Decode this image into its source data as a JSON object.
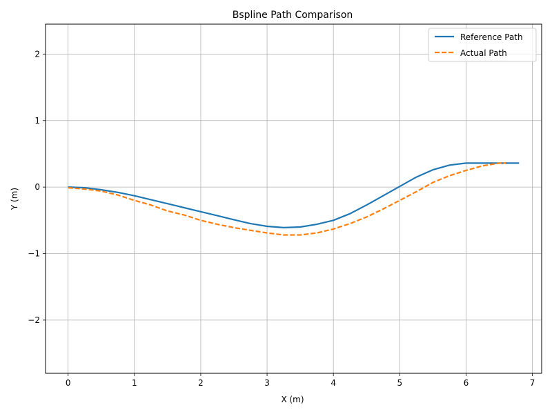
{
  "chart_data": {
    "type": "line",
    "title": "Bspline Path Comparison",
    "xlabel": "X (m)",
    "ylabel": "Y (m)",
    "xlim": [
      -0.34,
      7.14
    ],
    "ylim": [
      -2.8,
      2.45
    ],
    "xticks": [
      0,
      1,
      2,
      3,
      4,
      5,
      6,
      7
    ],
    "yticks": [
      -2,
      -1,
      0,
      1,
      2
    ],
    "xtick_labels": [
      "0",
      "1",
      "2",
      "3",
      "4",
      "5",
      "6",
      "7"
    ],
    "ytick_labels": [
      "−2",
      "−1",
      "0",
      "1",
      "2"
    ],
    "grid": true,
    "legend_position": "top-right",
    "series": [
      {
        "name": "Reference Path",
        "color": "#1f77b4",
        "style": "solid",
        "x": [
          0,
          0.25,
          0.5,
          0.75,
          1.0,
          1.25,
          1.5,
          1.75,
          2.0,
          2.25,
          2.5,
          2.75,
          3.0,
          3.25,
          3.5,
          3.75,
          4.0,
          4.25,
          4.5,
          4.75,
          5.0,
          5.25,
          5.5,
          5.75,
          6.0,
          6.25,
          6.5,
          6.8
        ],
        "y": [
          0,
          -0.01,
          -0.04,
          -0.08,
          -0.13,
          -0.19,
          -0.25,
          -0.31,
          -0.37,
          -0.43,
          -0.49,
          -0.55,
          -0.59,
          -0.61,
          -0.6,
          -0.56,
          -0.5,
          -0.4,
          -0.27,
          -0.13,
          0.01,
          0.15,
          0.26,
          0.33,
          0.36,
          0.36,
          0.36,
          0.36
        ]
      },
      {
        "name": "Actual Path",
        "color": "#ff7f0e",
        "style": "dashed",
        "x": [
          0,
          0.25,
          0.5,
          0.75,
          1.0,
          1.25,
          1.5,
          1.75,
          2.0,
          2.25,
          2.5,
          2.75,
          3.0,
          3.25,
          3.5,
          3.75,
          4.0,
          4.25,
          4.5,
          4.75,
          5.0,
          5.25,
          5.5,
          5.75,
          6.0,
          6.25,
          6.5,
          6.6
        ],
        "y": [
          -0.01,
          -0.03,
          -0.06,
          -0.12,
          -0.2,
          -0.27,
          -0.36,
          -0.42,
          -0.5,
          -0.56,
          -0.61,
          -0.65,
          -0.69,
          -0.72,
          -0.72,
          -0.69,
          -0.63,
          -0.55,
          -0.45,
          -0.33,
          -0.2,
          -0.07,
          0.07,
          0.17,
          0.25,
          0.32,
          0.36,
          0.36
        ]
      }
    ]
  }
}
